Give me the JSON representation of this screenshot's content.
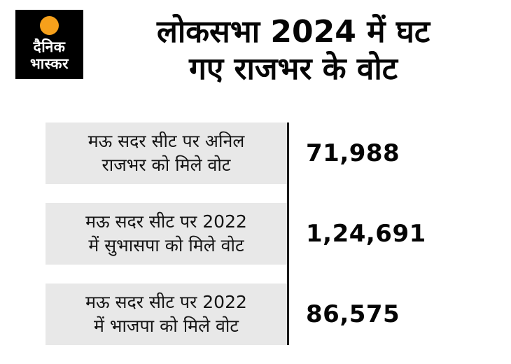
{
  "colors": {
    "background": "#ffffff",
    "logo_bg": "#000000",
    "logo_dot": "#f6a01b",
    "row_bg": "#e8e8e8",
    "divider": "#1a1a1a"
  },
  "logo": {
    "line1": "दैनिक",
    "line2": "भास्कर"
  },
  "title": {
    "line1": "लोकसभा 2024 में घट",
    "line2": "गए राजभर के वोट"
  },
  "rows": [
    {
      "label_line1": "मऊ सदर सीट पर अनिल",
      "label_line2": "राजभर को मिले वोट",
      "value": "71,988"
    },
    {
      "label_line1": "मऊ सदर सीट पर 2022",
      "label_line2": "में सुभासपा को मिले वोट",
      "value": "1,24,691"
    },
    {
      "label_line1": "मऊ सदर सीट पर 2022",
      "label_line2": "में भाजपा को मिले वोट",
      "value": "86,575"
    }
  ],
  "chart_data": {
    "type": "table",
    "title": "लोकसभा 2024 में घट गए राजभर के वोट",
    "categories": [
      "मऊ सदर सीट पर अनिल राजभर को मिले वोट",
      "मऊ सदर सीट पर 2022 में सुभासपा को मिले वोट",
      "मऊ सदर सीट पर 2022 में भाजपा को मिले वोट"
    ],
    "values": [
      71988,
      124691,
      86575
    ],
    "value_labels": [
      "71,988",
      "1,24,691",
      "86,575"
    ],
    "layout": {
      "legend": "none",
      "grid": "off",
      "style": "label-box left, value right, vertical divider between"
    }
  }
}
